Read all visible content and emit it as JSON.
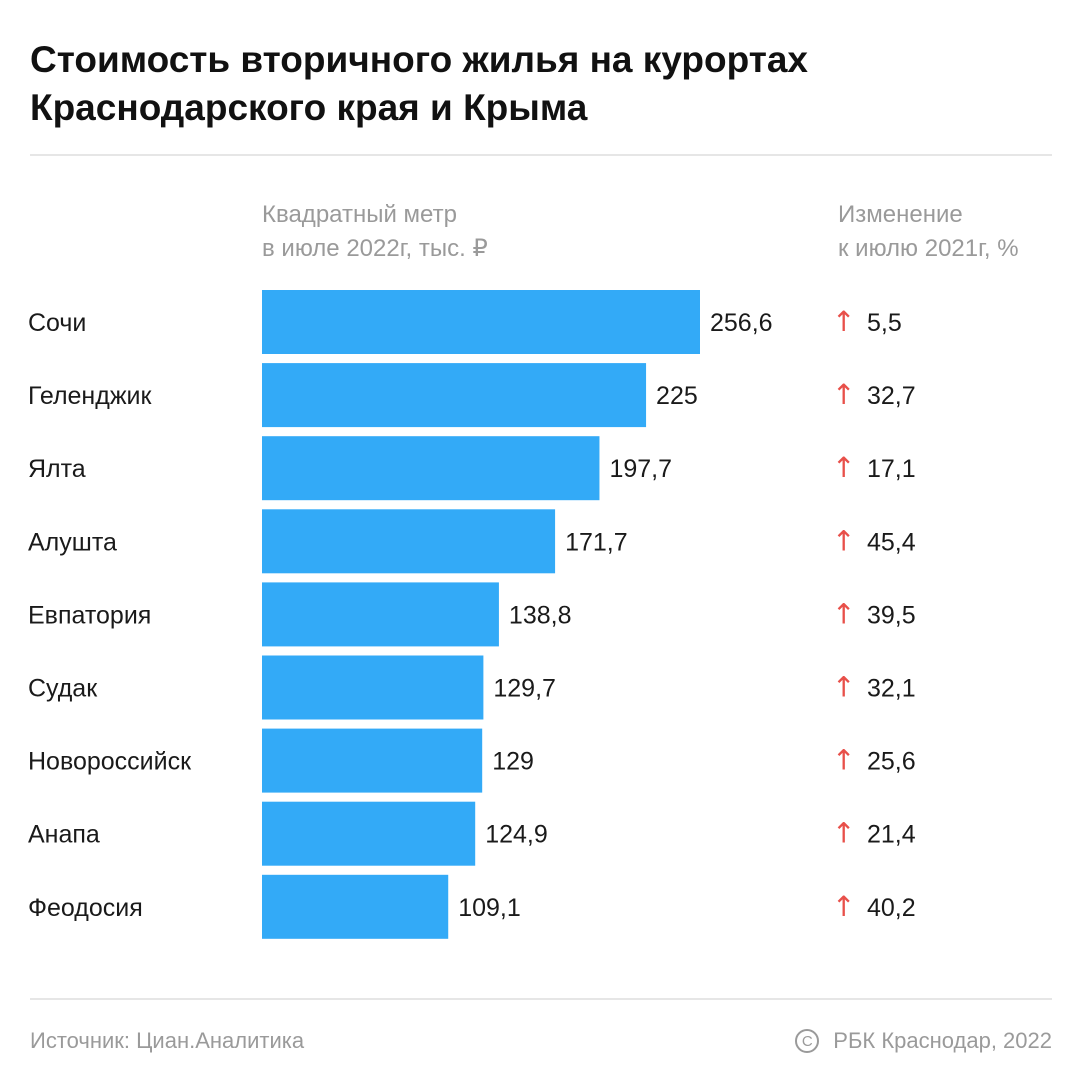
{
  "header": {
    "title_line1": "Стоимость вторичного жилья на курортах",
    "title_line2": "Краснодарского края и Крыма"
  },
  "columns": {
    "value_line1": "Квадратный метр",
    "value_line2": "в июле 2022г, тыс. ₽",
    "change_line1": "Изменение",
    "change_line2": "к июлю 2021г, %"
  },
  "chart_data": {
    "type": "bar",
    "orientation": "horizontal",
    "categories": [
      "Сочи",
      "Геленджик",
      "Ялта",
      "Алушта",
      "Евпатория",
      "Судак",
      "Новороссийск",
      "Анапа",
      "Феодосия"
    ],
    "values": [
      256.6,
      225,
      197.7,
      171.7,
      138.8,
      129.7,
      129,
      124.9,
      109.1
    ],
    "value_labels": [
      "256,6",
      "225",
      "197,7",
      "171,7",
      "138,8",
      "129,7",
      "129",
      "124,9",
      "109,1"
    ],
    "change": [
      5.5,
      32.7,
      17.1,
      45.4,
      39.5,
      32.1,
      25.6,
      21.4,
      40.2
    ],
    "change_labels": [
      "5,5",
      "32,7",
      "17,1",
      "45,4",
      "39,5",
      "32,1",
      "25,6",
      "21,4",
      "40,2"
    ],
    "change_direction": "up",
    "change_arrow": "↑",
    "bar_color": "#33aaf7",
    "arrow_color": "#e8504a",
    "xlim": [
      0,
      256.6
    ],
    "grid": false
  },
  "footer": {
    "source": "Источник: Циан.Аналитика",
    "copyright_symbol": "C",
    "credit": "РБК Краснодар, 2022"
  }
}
